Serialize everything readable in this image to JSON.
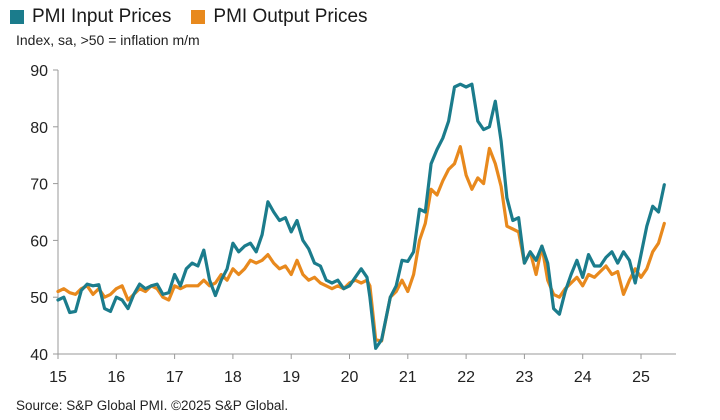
{
  "chart_data": {
    "type": "line",
    "title": "",
    "subtitle": "Index, sa, >50 = inflation m/m",
    "source": "Source: S&P Global PMI. ©2025 S&P Global.",
    "xlabel": "",
    "ylabel": "",
    "xlim": [
      2015,
      2025.6
    ],
    "ylim": [
      40,
      90
    ],
    "yticks": [
      40,
      50,
      60,
      70,
      80,
      90
    ],
    "xticks": [
      {
        "value": 2015,
        "label": "15"
      },
      {
        "value": 2016,
        "label": "16"
      },
      {
        "value": 2017,
        "label": "17"
      },
      {
        "value": 2018,
        "label": "18"
      },
      {
        "value": 2019,
        "label": "19"
      },
      {
        "value": 2020,
        "label": "20"
      },
      {
        "value": 2021,
        "label": "21"
      },
      {
        "value": 2022,
        "label": "22"
      },
      {
        "value": 2023,
        "label": "23"
      },
      {
        "value": 2024,
        "label": "24"
      },
      {
        "value": 2025,
        "label": "25"
      }
    ],
    "grid": false,
    "legend_position": "top-left",
    "series": [
      {
        "name": "PMI Input Prices",
        "color": "#1b7c8c",
        "x": [
          2015.0,
          2015.1,
          2015.2,
          2015.3,
          2015.4,
          2015.5,
          2015.6,
          2015.7,
          2015.8,
          2015.9,
          2016.0,
          2016.1,
          2016.2,
          2016.3,
          2016.4,
          2016.5,
          2016.6,
          2016.7,
          2016.8,
          2016.9,
          2017.0,
          2017.1,
          2017.2,
          2017.3,
          2017.4,
          2017.5,
          2017.6,
          2017.7,
          2017.8,
          2017.9,
          2018.0,
          2018.1,
          2018.2,
          2018.3,
          2018.4,
          2018.5,
          2018.6,
          2018.7,
          2018.8,
          2018.9,
          2019.0,
          2019.1,
          2019.2,
          2019.3,
          2019.4,
          2019.5,
          2019.6,
          2019.7,
          2019.8,
          2019.9,
          2020.0,
          2020.1,
          2020.2,
          2020.3,
          2020.35,
          2020.45,
          2020.55,
          2020.7,
          2020.8,
          2020.9,
          2021.0,
          2021.1,
          2021.2,
          2021.3,
          2021.4,
          2021.5,
          2021.6,
          2021.7,
          2021.8,
          2021.9,
          2022.0,
          2022.1,
          2022.2,
          2022.3,
          2022.4,
          2022.5,
          2022.6,
          2022.7,
          2022.8,
          2022.9,
          2023.0,
          2023.1,
          2023.2,
          2023.3,
          2023.4,
          2023.5,
          2023.6,
          2023.7,
          2023.8,
          2023.9,
          2024.0,
          2024.1,
          2024.2,
          2024.3,
          2024.4,
          2024.5,
          2024.6,
          2024.7,
          2024.8,
          2024.9,
          2025.0,
          2025.1,
          2025.2,
          2025.3,
          2025.4
        ],
        "values": [
          49.5,
          50.0,
          47.3,
          47.5,
          51.2,
          52.3,
          52.0,
          52.2,
          48.0,
          47.5,
          50.0,
          49.5,
          48.0,
          50.5,
          52.3,
          51.5,
          52.0,
          52.3,
          50.5,
          50.8,
          54.0,
          52.0,
          55.0,
          56.0,
          55.5,
          58.3,
          53.0,
          50.3,
          53.0,
          55.0,
          59.5,
          58.0,
          59.0,
          59.5,
          58.0,
          61.0,
          66.8,
          65.0,
          63.5,
          64.0,
          61.5,
          63.5,
          60.0,
          58.5,
          56.0,
          55.5,
          53.0,
          52.5,
          53.0,
          51.5,
          52.0,
          53.5,
          55.0,
          53.5,
          50.0,
          41.0,
          42.5,
          50.0,
          52.0,
          56.5,
          56.3,
          58.0,
          65.5,
          65.0,
          73.5,
          76.0,
          78.0,
          81.0,
          87.0,
          87.5,
          87.0,
          87.5,
          81.0,
          79.5,
          80.0,
          84.5,
          77.5,
          67.5,
          63.5,
          64.0,
          56.0,
          58.0,
          56.5,
          59.0,
          56.0,
          48.0,
          47.0,
          51.0,
          54.0,
          56.5,
          53.5,
          57.5,
          55.5,
          55.5,
          57.0,
          58.0,
          56.0,
          58.0,
          56.5,
          52.5,
          57.5,
          62.5,
          66.0,
          65.0,
          69.8
        ]
      },
      {
        "name": "PMI Output Prices",
        "color": "#e8891d",
        "x": [
          2015.0,
          2015.1,
          2015.2,
          2015.3,
          2015.4,
          2015.5,
          2015.6,
          2015.7,
          2015.8,
          2015.9,
          2016.0,
          2016.1,
          2016.2,
          2016.3,
          2016.4,
          2016.5,
          2016.6,
          2016.7,
          2016.8,
          2016.9,
          2017.0,
          2017.1,
          2017.2,
          2017.3,
          2017.4,
          2017.5,
          2017.6,
          2017.7,
          2017.8,
          2017.9,
          2018.0,
          2018.1,
          2018.2,
          2018.3,
          2018.4,
          2018.5,
          2018.6,
          2018.7,
          2018.8,
          2018.9,
          2019.0,
          2019.1,
          2019.2,
          2019.3,
          2019.4,
          2019.5,
          2019.6,
          2019.7,
          2019.8,
          2019.9,
          2020.0,
          2020.1,
          2020.2,
          2020.3,
          2020.35,
          2020.45,
          2020.55,
          2020.7,
          2020.8,
          2020.9,
          2021.0,
          2021.1,
          2021.2,
          2021.3,
          2021.4,
          2021.5,
          2021.6,
          2021.7,
          2021.8,
          2021.9,
          2022.0,
          2022.1,
          2022.2,
          2022.3,
          2022.4,
          2022.5,
          2022.6,
          2022.7,
          2022.8,
          2022.9,
          2023.0,
          2023.1,
          2023.2,
          2023.3,
          2023.4,
          2023.5,
          2023.6,
          2023.7,
          2023.8,
          2023.9,
          2024.0,
          2024.1,
          2024.2,
          2024.3,
          2024.4,
          2024.5,
          2024.6,
          2024.7,
          2024.8,
          2024.9,
          2025.0,
          2025.1,
          2025.2,
          2025.3,
          2025.4
        ],
        "values": [
          51.0,
          51.5,
          50.8,
          50.5,
          51.5,
          52.0,
          50.5,
          51.5,
          50.0,
          50.5,
          51.5,
          52.0,
          49.5,
          50.5,
          51.5,
          51.0,
          52.0,
          51.5,
          50.0,
          49.5,
          52.0,
          51.5,
          52.0,
          52.0,
          52.0,
          53.0,
          52.0,
          52.5,
          54.0,
          53.0,
          55.0,
          54.0,
          55.0,
          56.5,
          56.0,
          56.5,
          57.5,
          56.0,
          55.0,
          55.5,
          54.0,
          56.5,
          54.0,
          53.0,
          53.5,
          52.5,
          52.0,
          51.5,
          52.0,
          51.5,
          52.5,
          53.0,
          52.5,
          53.0,
          52.0,
          42.5,
          42.3,
          50.0,
          51.0,
          53.0,
          51.0,
          54.0,
          60.0,
          63.0,
          69.0,
          68.0,
          70.5,
          72.5,
          73.5,
          76.5,
          71.5,
          69.0,
          71.0,
          70.0,
          76.2,
          73.5,
          69.5,
          62.5,
          62.0,
          61.5,
          56.0,
          58.0,
          54.0,
          59.0,
          53.0,
          50.5,
          50.0,
          51.5,
          52.5,
          53.5,
          52.0,
          54.0,
          53.5,
          54.5,
          55.5,
          54.0,
          54.5,
          50.5,
          53.0,
          55.0,
          53.5,
          55.0,
          58.0,
          59.5,
          63.0
        ]
      }
    ]
  }
}
